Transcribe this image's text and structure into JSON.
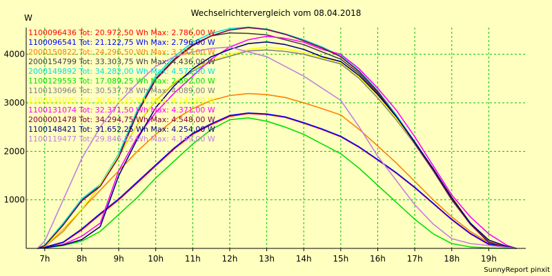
{
  "chart_data": {
    "type": "line",
    "title": "Wechselrichtervergleich vom 08.04.2018",
    "ylabel": "W",
    "credit": "SunnyReport pinxit",
    "xlim": [
      6.5,
      20
    ],
    "ylim": [
      0,
      4550
    ],
    "x_ticks": [
      {
        "value": 7,
        "label": "7h"
      },
      {
        "value": 8,
        "label": "8h"
      },
      {
        "value": 9,
        "label": "9h"
      },
      {
        "value": 10,
        "label": "10h"
      },
      {
        "value": 11,
        "label": "11h"
      },
      {
        "value": 12,
        "label": "12h"
      },
      {
        "value": 13,
        "label": "13h"
      },
      {
        "value": 14,
        "label": "14h"
      },
      {
        "value": 15,
        "label": "15h"
      },
      {
        "value": 16,
        "label": "16h"
      },
      {
        "value": 17,
        "label": "17h"
      },
      {
        "value": 18,
        "label": "18h"
      },
      {
        "value": 19,
        "label": "19h"
      }
    ],
    "y_ticks": [
      {
        "value": 1000,
        "label": "1000"
      },
      {
        "value": 2000,
        "label": "2000"
      },
      {
        "value": 3000,
        "label": "3000"
      },
      {
        "value": 4000,
        "label": "4000"
      }
    ],
    "grid": true,
    "legend_placement": "top-left",
    "series": [
      {
        "name": "1100096436",
        "legend": "1100096436 Tot: 20.972,50 Wh Max: 2.786,00 W",
        "color": "#ff0000",
        "x": [
          6.8,
          7,
          7.5,
          8,
          8.5,
          9,
          9.5,
          10,
          10.5,
          11,
          11.5,
          12,
          12.5,
          13,
          13.5,
          14,
          14.5,
          15,
          15.5,
          16,
          16.5,
          17,
          17.5,
          18,
          18.5,
          19,
          19.5,
          19.75
        ],
        "y": [
          0,
          20,
          120,
          380,
          700,
          1000,
          1350,
          1700,
          2050,
          2350,
          2550,
          2720,
          2780,
          2760,
          2700,
          2580,
          2450,
          2300,
          2080,
          1820,
          1550,
          1250,
          920,
          590,
          300,
          80,
          20,
          0
        ]
      },
      {
        "name": "1100096541",
        "legend": "1100096541 Tot: 21.122,75 Wh Max: 2.796,00 W",
        "color": "#0000ff",
        "x": [
          6.8,
          7,
          7.5,
          8,
          8.5,
          9,
          9.5,
          10,
          10.5,
          11,
          11.5,
          12,
          12.5,
          13,
          13.5,
          14,
          14.5,
          15,
          15.5,
          16,
          16.5,
          17,
          17.5,
          18,
          18.5,
          19,
          19.5,
          19.75
        ],
        "y": [
          0,
          25,
          130,
          400,
          720,
          1020,
          1370,
          1720,
          2070,
          2370,
          2570,
          2740,
          2790,
          2770,
          2710,
          2590,
          2460,
          2310,
          2090,
          1830,
          1560,
          1260,
          930,
          600,
          310,
          90,
          25,
          0
        ]
      },
      {
        "name": "2000150822",
        "legend": "2000150822 Tot: 24.296,50 Wh Max: 3.192,00 W",
        "color": "#ff8000",
        "x": [
          6.8,
          7,
          7.5,
          8,
          8.5,
          9,
          9.5,
          10,
          10.5,
          11,
          11.5,
          12,
          12.5,
          13,
          13.5,
          14,
          14.5,
          15,
          15.5,
          16,
          16.5,
          17,
          17.5,
          18,
          18.5,
          19,
          19.5,
          19.75
        ],
        "y": [
          0,
          40,
          350,
          800,
          1200,
          1600,
          2000,
          2350,
          2650,
          2880,
          3050,
          3150,
          3190,
          3170,
          3110,
          3000,
          2880,
          2750,
          2450,
          2110,
          1760,
          1380,
          1000,
          650,
          350,
          120,
          30,
          0
        ]
      },
      {
        "name": "2000154799",
        "legend": "2000154799 Tot: 33.303,75 Wh Max: 4.436,00 W",
        "color": "#404040",
        "x": [
          6.8,
          7,
          7.5,
          8,
          8.5,
          9,
          9.5,
          10,
          10.5,
          11,
          11.5,
          12,
          12.5,
          13,
          13.5,
          14,
          14.5,
          15,
          15.5,
          16,
          16.5,
          17,
          17.5,
          18,
          18.5,
          19,
          19.5,
          19.75
        ],
        "y": [
          0,
          60,
          500,
          1000,
          1300,
          1900,
          2800,
          3500,
          3900,
          4200,
          4380,
          4440,
          4430,
          4400,
          4300,
          4200,
          4050,
          3900,
          3600,
          3200,
          2700,
          2150,
          1600,
          1000,
          500,
          120,
          20,
          0
        ]
      },
      {
        "name": "2000149892",
        "legend": "2000149892 Tot: 34.282,00 Wh Max: 4.572,00 W",
        "color": "#00e0e0",
        "x": [
          6.8,
          7,
          7.5,
          8,
          8.5,
          9,
          9.5,
          10,
          10.5,
          11,
          11.5,
          12,
          12.5,
          13,
          13.5,
          14,
          14.5,
          15,
          15.5,
          16,
          16.5,
          17,
          17.5,
          18,
          18.5,
          19,
          19.5,
          19.75
        ],
        "y": [
          0,
          70,
          520,
          1020,
          1320,
          1950,
          2850,
          3550,
          3950,
          4250,
          4430,
          4530,
          4560,
          4520,
          4420,
          4300,
          4150,
          3970,
          3660,
          3250,
          2750,
          2200,
          1640,
          1050,
          530,
          140,
          25,
          0
        ]
      },
      {
        "name": "1100129553",
        "legend": "1100129553 Tot: 17.089,25 Wh Max: 2.692,00 W",
        "color": "#00e000",
        "x": [
          6.8,
          7,
          7.5,
          8,
          8.5,
          9,
          9.5,
          10,
          10.5,
          11,
          11.5,
          12,
          12.5,
          13,
          13.5,
          14,
          14.5,
          15,
          15.5,
          16,
          16.5,
          17,
          17.5,
          18,
          18.5,
          19,
          19.5,
          19.75
        ],
        "y": [
          0,
          10,
          60,
          150,
          350,
          700,
          1050,
          1450,
          1800,
          2150,
          2450,
          2650,
          2690,
          2620,
          2500,
          2350,
          2150,
          1950,
          1650,
          1300,
          950,
          600,
          300,
          100,
          30,
          10,
          0,
          0
        ]
      },
      {
        "name": "1100130966",
        "legend": "1100130966 Tot: 30.537,75 Wh Max: 4.089,00 W",
        "color": "#808080",
        "x": [
          6.8,
          7,
          7.5,
          8,
          8.5,
          9,
          9.5,
          10,
          10.5,
          11,
          11.5,
          12,
          12.5,
          13,
          13.5,
          14,
          14.5,
          15,
          15.5,
          16,
          16.5,
          17,
          17.5,
          18,
          18.5,
          19,
          19.5,
          19.75
        ],
        "y": [
          0,
          40,
          400,
          800,
          1300,
          1900,
          2550,
          3050,
          3400,
          3650,
          3850,
          3960,
          4070,
          4089,
          4060,
          4000,
          3900,
          3800,
          3500,
          3100,
          2650,
          2150,
          1600,
          1050,
          500,
          150,
          30,
          0
        ]
      },
      {
        "name": "1100131025",
        "legend": "1100131025 Tot: 30.623,25 Wh Max: 4.145,00 W",
        "color": "#ffff00",
        "x": [
          6.8,
          7,
          7.5,
          8,
          8.5,
          9,
          9.5,
          10,
          10.5,
          11,
          11.5,
          12,
          12.5,
          13,
          13.5,
          14,
          14.5,
          15,
          15.5,
          16,
          16.5,
          17,
          17.5,
          18,
          18.5,
          19,
          19.5,
          19.75
        ],
        "y": [
          0,
          45,
          410,
          810,
          1310,
          1910,
          2560,
          3060,
          3420,
          3680,
          3880,
          3990,
          4100,
          4145,
          4110,
          4040,
          3930,
          3830,
          3530,
          3130,
          2680,
          2170,
          1620,
          1070,
          520,
          160,
          35,
          0
        ]
      },
      {
        "name": "1100131074",
        "legend": "1100131074 Tot: 32.371,50 Wh Max: 4.371,00 W",
        "color": "#ff00ff",
        "x": [
          6.8,
          7,
          7.5,
          8,
          8.5,
          9,
          9.5,
          10,
          10.5,
          11,
          11.5,
          12,
          12.5,
          13,
          13.5,
          14,
          14.5,
          15,
          15.5,
          16,
          16.5,
          17,
          17.5,
          18,
          18.5,
          19,
          19.5,
          19.75
        ],
        "y": [
          0,
          15,
          80,
          250,
          520,
          1600,
          2300,
          2800,
          3200,
          3550,
          3900,
          4150,
          4300,
          4371,
          4330,
          4250,
          4100,
          4000,
          3700,
          3300,
          2850,
          2300,
          1700,
          1100,
          650,
          300,
          60,
          0
        ]
      },
      {
        "name": "2000001478",
        "legend": "2000001478 Tot: 34.294,75 Wh Max: 4.548,00 W",
        "color": "#800040",
        "x": [
          6.8,
          7,
          7.5,
          8,
          8.5,
          9,
          9.5,
          10,
          10.5,
          11,
          11.5,
          12,
          12.5,
          13,
          13.5,
          14,
          14.5,
          15,
          15.5,
          16,
          16.5,
          17,
          17.5,
          18,
          18.5,
          19,
          19.5,
          19.75
        ],
        "y": [
          0,
          55,
          480,
          980,
          1280,
          1880,
          2780,
          3480,
          3880,
          4180,
          4380,
          4500,
          4548,
          4510,
          4410,
          4280,
          4130,
          3950,
          3640,
          3230,
          2720,
          2170,
          1610,
          1020,
          500,
          130,
          20,
          0
        ]
      },
      {
        "name": "1100148421",
        "legend": "1100148421 Tot: 31.652,25 Wh Max: 4.254,00 W",
        "color": "#000080",
        "x": [
          6.8,
          7,
          7.5,
          8,
          8.5,
          9,
          9.5,
          10,
          10.5,
          11,
          11.5,
          12,
          12.5,
          13,
          13.5,
          14,
          14.5,
          15,
          15.5,
          16,
          16.5,
          17,
          17.5,
          18,
          18.5,
          19,
          19.5,
          19.75
        ],
        "y": [
          0,
          15,
          70,
          180,
          450,
          1500,
          2250,
          2900,
          3350,
          3700,
          3950,
          4100,
          4220,
          4254,
          4200,
          4100,
          3950,
          3850,
          3560,
          3170,
          2720,
          2190,
          1640,
          1050,
          520,
          170,
          40,
          0
        ]
      },
      {
        "name": "1100119477",
        "legend": "1100119477 Tot: 29.846,25 Wh Max: 4.149,00 W",
        "color": "#c080e0",
        "x": [
          6.8,
          7,
          7.5,
          8,
          8.5,
          9,
          9.5,
          10,
          10.5,
          11,
          11.5,
          12,
          12.5,
          13,
          13.5,
          14,
          14.5,
          15,
          15.5,
          16,
          16.5,
          17,
          17.5,
          18,
          18.5,
          19,
          19.5,
          19.75
        ],
        "y": [
          0,
          150,
          1000,
          1850,
          2500,
          3000,
          3400,
          3750,
          3950,
          4050,
          4120,
          4149,
          4050,
          3950,
          3750,
          3550,
          3300,
          3050,
          2500,
          1900,
          1400,
          900,
          500,
          200,
          100,
          60,
          20,
          0
        ]
      }
    ]
  }
}
